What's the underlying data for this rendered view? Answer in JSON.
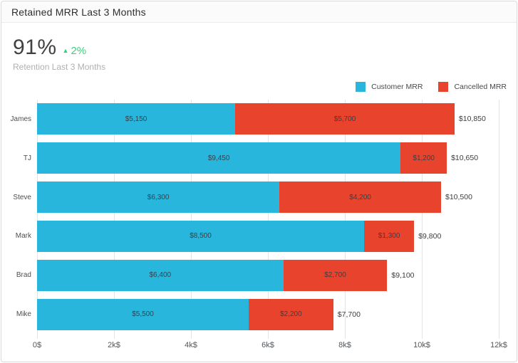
{
  "window": {
    "title": "Retained MRR Last 3 Months"
  },
  "kpi": {
    "value": "91%",
    "delta_direction": "up",
    "delta": "2%",
    "subtitle": "Retention Last 3 Months"
  },
  "legend": [
    {
      "label": "Customer MRR",
      "color": "#29b6dc"
    },
    {
      "label": "Cancelled MRR",
      "color": "#e8432c"
    }
  ],
  "icons": {
    "delta_up": "▲"
  },
  "colors": {
    "customer": "#29b6dc",
    "cancelled": "#e8432c",
    "positive_green": "#3ecf7f"
  },
  "chart_data": {
    "type": "bar",
    "orientation": "horizontal",
    "stacked": true,
    "title": "Retained MRR Last 3 Months",
    "categories": [
      "James",
      "TJ",
      "Steve",
      "Mark",
      "Brad",
      "Mike"
    ],
    "series": [
      {
        "name": "Customer MRR",
        "color": "#29b6dc",
        "values": [
          5150,
          9450,
          6300,
          8500,
          6400,
          5500
        ],
        "labels": [
          "$5,150",
          "$9,450",
          "$6,300",
          "$8,500",
          "$6,400",
          "$5,500"
        ]
      },
      {
        "name": "Cancelled MRR",
        "color": "#e8432c",
        "values": [
          5700,
          1200,
          4200,
          1300,
          2700,
          2200
        ],
        "labels": [
          "$5,700",
          "$1,200",
          "$4,200",
          "$1,300",
          "$2,700",
          "$2,200"
        ]
      }
    ],
    "totals": [
      10850,
      10650,
      10500,
      9800,
      9100,
      7700
    ],
    "total_labels": [
      "$10,850",
      "$10,650",
      "$10,500",
      "$9,800",
      "$9,100",
      "$7,700"
    ],
    "xlim": [
      0,
      12000
    ],
    "x_ticks": [
      "0$",
      "2k$",
      "4k$",
      "6k$",
      "8k$",
      "10k$",
      "12k$"
    ],
    "grid": true,
    "legend_position": "top-right"
  }
}
